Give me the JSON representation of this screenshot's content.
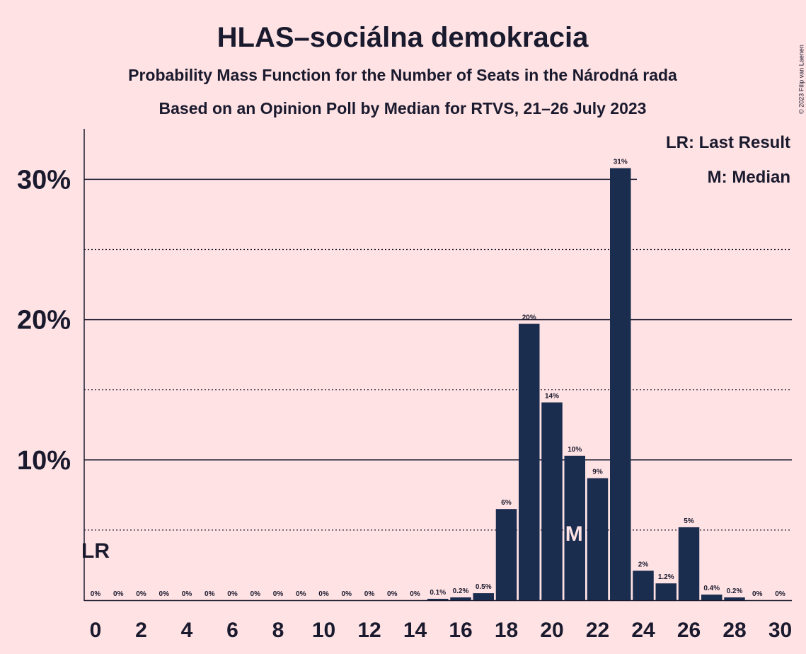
{
  "colors": {
    "background": "#ffe2e4",
    "bar": "#1b2d4f",
    "text": "#1a1a2e",
    "median_label": "#ffe2e4"
  },
  "chart_data": {
    "type": "bar",
    "title": "HLAS–sociálna demokracia",
    "subtitle": "Probability Mass Function for the Number of Seats in the Národná rada",
    "subtitle2": "Based on an Opinion Poll by Median for RTVS, 21–26 July 2023",
    "copyright": "© 2023 Filip van Laenen",
    "categories": [
      0,
      1,
      2,
      3,
      4,
      5,
      6,
      7,
      8,
      9,
      10,
      11,
      12,
      13,
      14,
      15,
      16,
      17,
      18,
      19,
      20,
      21,
      22,
      23,
      24,
      25,
      26,
      27,
      28,
      29,
      30
    ],
    "values": [
      0,
      0,
      0,
      0,
      0,
      0,
      0,
      0,
      0,
      0,
      0,
      0,
      0,
      0,
      0,
      0.1,
      0.2,
      0.5,
      6.5,
      19.7,
      14.1,
      10.3,
      8.7,
      30.8,
      2.1,
      1.2,
      5.2,
      0.4,
      0.2,
      0,
      0
    ],
    "data_labels": [
      "0%",
      "0%",
      "0%",
      "0%",
      "0%",
      "0%",
      "0%",
      "0%",
      "0%",
      "0%",
      "0%",
      "0%",
      "0%",
      "0%",
      "0%",
      "0.1%",
      "0.2%",
      "0.5%",
      "6%",
      "20%",
      "14%",
      "10%",
      "9%",
      "31%",
      "2%",
      "1.2%",
      "5%",
      "0.4%",
      "0.2%",
      "0%",
      "0%"
    ],
    "x_tick_labels": [
      "0",
      "2",
      "4",
      "6",
      "8",
      "10",
      "12",
      "14",
      "16",
      "18",
      "20",
      "22",
      "24",
      "26",
      "28",
      "30"
    ],
    "y_tick_labels": [
      "10%",
      "20%",
      "30%"
    ],
    "ylim": [
      0,
      33
    ],
    "last_result_seat": 0,
    "last_result_marker": "LR",
    "median_seat": 21,
    "median_marker": "M",
    "legend": [
      "LR: Last Result",
      "M: Median"
    ],
    "legend_position": "top-right",
    "grid": "solid at 10% steps, dotted at 5% steps"
  }
}
